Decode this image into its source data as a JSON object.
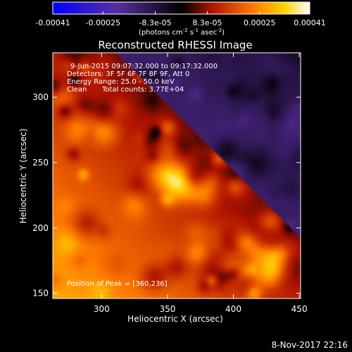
{
  "colorbar": {
    "tick_labels": [
      "-0.00041",
      "-0.00025",
      "-8.3e-05",
      "8.3e-05",
      "0.00025",
      "0.00041"
    ],
    "tick_values": [
      -0.00041,
      -0.00025,
      -8.3e-05,
      8.3e-05,
      0.00025,
      0.00041
    ],
    "range": [
      -0.00041,
      0.00041
    ],
    "unit_prefix": "(photons cm",
    "unit_exp1": "-2",
    "unit_mid": " s",
    "unit_exp2": "-1",
    "unit_mid2": " asec",
    "unit_exp3": "-2",
    "unit_suffix": ")",
    "colors": [
      "#0000ff",
      "#5a2ea0",
      "#000000",
      "#b01400",
      "#ff7a00",
      "#ffd200",
      "#ffffff"
    ]
  },
  "chart_data": {
    "type": "heatmap",
    "title": "Reconstructed RHESSI Image",
    "xlabel": "Heliocentric X (arcsec)",
    "ylabel": "Heliocentric Y (arcsec)",
    "xlim": [
      263,
      451
    ],
    "ylim": [
      146,
      334
    ],
    "x_ticks": [
      300,
      350,
      400,
      450
    ],
    "y_ticks": [
      150,
      200,
      250,
      300
    ],
    "x_tick_labels": [
      "300",
      "350",
      "400",
      "450"
    ],
    "y_tick_labels": [
      "150",
      "200",
      "250",
      "300"
    ],
    "peak": [
      360,
      236
    ],
    "annotations": {
      "time_range": "9-Jun-2015 09:07:32.000 to 09:17:32.000",
      "detectors": "Detectors: 3F 5F 6F 7F 8F 9F, Att 0",
      "energy": "Energy Range: 25.0 - 50.0 keV",
      "clean_label": "Clean",
      "total_counts": "Total counts: 3.77E+04",
      "peak_text": "Position of Peak = [360,236]"
    }
  },
  "footer": {
    "date": "8-Nov-2017 22:16"
  }
}
